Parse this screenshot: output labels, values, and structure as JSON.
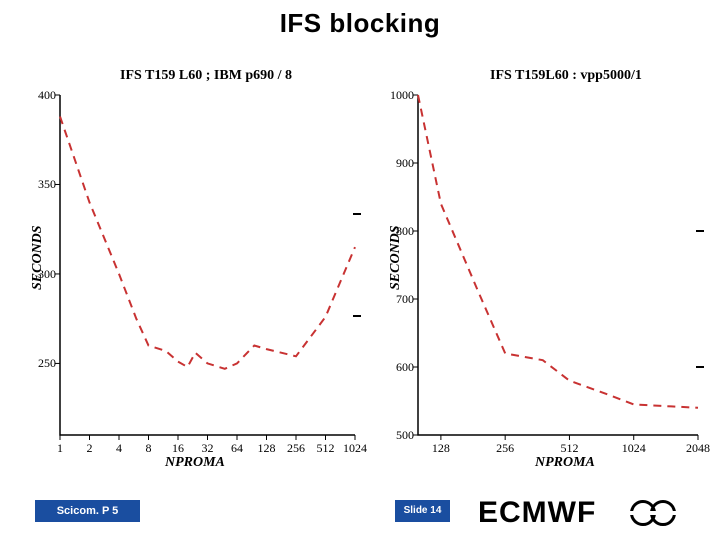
{
  "title": "IFS blocking",
  "footer": {
    "left_label": "Scicom. P 5",
    "slide_label": "Slide 14",
    "logo_text": "ECMWF"
  },
  "left_chart": {
    "type": "line",
    "title": "IFS  T159 L60 ; IBM p690 / 8",
    "xlabel": "NPROMA",
    "ylabel": "SECONDS",
    "line_color": "#c83232",
    "line_width": 2,
    "dash": "8,6",
    "background_color": "#ffffff",
    "axis_color": "#000000",
    "tick_fontsize": 12,
    "xlim": [
      1,
      1024
    ],
    "ylim": [
      210,
      400
    ],
    "xticks": [
      1,
      2,
      4,
      8,
      16,
      32,
      64,
      128,
      256,
      512,
      1024
    ],
    "yticks": [
      250,
      300,
      350,
      400
    ],
    "x_scale": "log2",
    "x": [
      1,
      2,
      4,
      6,
      8,
      12,
      16,
      20,
      24,
      32,
      48,
      64,
      96,
      128,
      256,
      512,
      1024
    ],
    "y": [
      388,
      340,
      300,
      275,
      260,
      257,
      251,
      248,
      256,
      250,
      247,
      250,
      260,
      258,
      254,
      276,
      315
    ]
  },
  "right_chart": {
    "type": "line",
    "title": "IFS T159L60 : vpp5000/1",
    "xlabel": "NPROMA",
    "ylabel": "SECONDS",
    "line_color": "#c83232",
    "line_width": 2,
    "dash": "8,6",
    "background_color": "#ffffff",
    "axis_color": "#000000",
    "tick_fontsize": 12,
    "xlim": [
      100,
      2048
    ],
    "ylim": [
      500,
      1000
    ],
    "xticks": [
      128,
      256,
      512,
      1024,
      2048
    ],
    "yticks": [
      500,
      600,
      700,
      800,
      900,
      1000
    ],
    "x_scale": "log2",
    "x": [
      100,
      128,
      192,
      256,
      384,
      512,
      768,
      1024,
      1536,
      2048
    ],
    "y": [
      1000,
      840,
      710,
      620,
      610,
      580,
      560,
      545,
      542,
      540
    ]
  }
}
